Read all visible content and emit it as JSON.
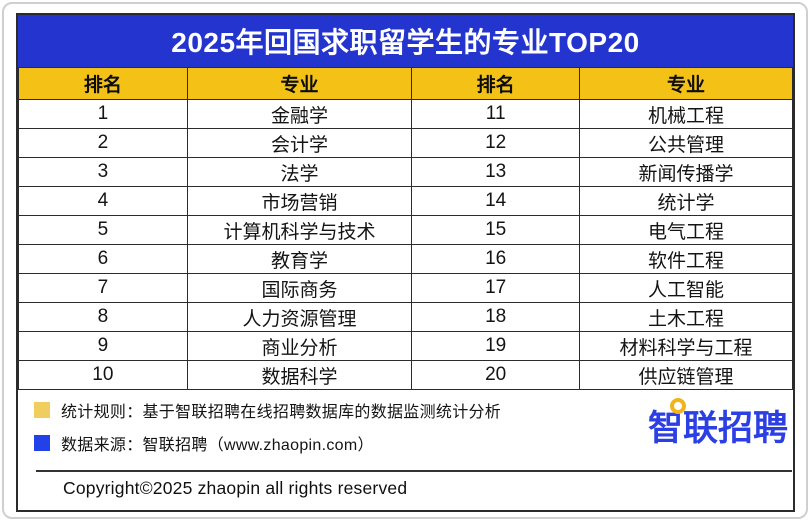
{
  "chart_data": {
    "type": "table",
    "title": "2025年回国求职留学生的专业TOP20",
    "columns": [
      "排名",
      "专业",
      "排名",
      "专业"
    ],
    "rows": [
      [
        "1",
        "金融学",
        "11",
        "机械工程"
      ],
      [
        "2",
        "会计学",
        "12",
        "公共管理"
      ],
      [
        "3",
        "法学",
        "13",
        "新闻传播学"
      ],
      [
        "4",
        "市场营销",
        "14",
        "统计学"
      ],
      [
        "5",
        "计算机科学与技术",
        "15",
        "电气工程"
      ],
      [
        "6",
        "教育学",
        "16",
        "软件工程"
      ],
      [
        "7",
        "国际商务",
        "17",
        "人工智能"
      ],
      [
        "8",
        "人力资源管理",
        "18",
        "土木工程"
      ],
      [
        "9",
        "商业分析",
        "19",
        "材料科学与工程"
      ],
      [
        "10",
        "数据科学",
        "20",
        "供应链管理"
      ]
    ]
  },
  "footnotes": {
    "items": [
      {
        "bullet_color": "#EFCD5E",
        "text": "统计规则：基于智联招聘在线招聘数据库的数据监测统计分析"
      },
      {
        "bullet_color": "#2341E9",
        "text": "数据来源：智联招聘（www.zhaopin.com）"
      }
    ]
  },
  "logo": {
    "text": "智联招聘"
  },
  "watermark": {
    "text": "智联招聘"
  },
  "copyright": "Copyright©2025 zhaopin all rights reserved",
  "colors": {
    "header_blue": "#2334CF",
    "header_yellow": "#F4C216",
    "logo_blue": "#2B3FE4",
    "logo_dot_yellow": "#F2B31C",
    "border_dark": "#2B2B2B"
  }
}
